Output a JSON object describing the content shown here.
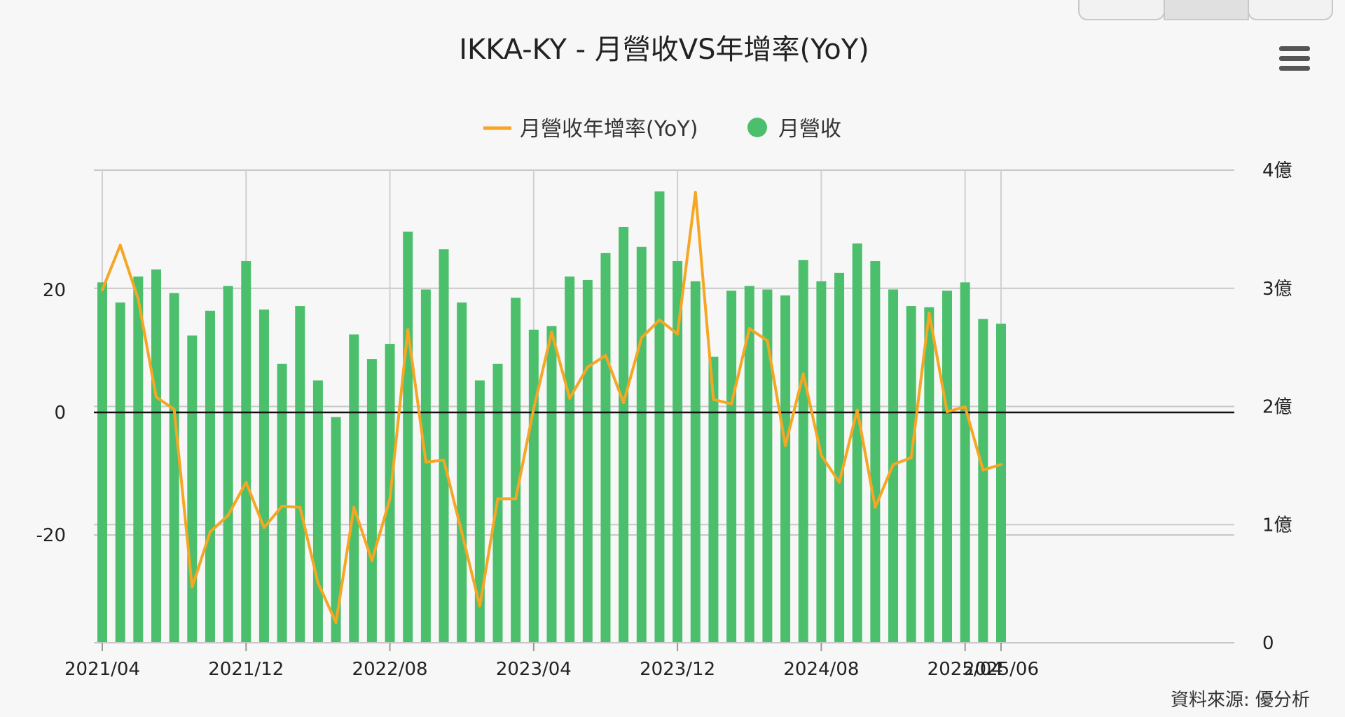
{
  "chart_data": {
    "type": "bar",
    "title": "IKKA-KY - 月營收VS年增率(YoY)",
    "source": "資料來源: 優分析",
    "legend": [
      {
        "name": "月營收年增率(YoY)",
        "marker": "line",
        "color": "#f5a623"
      },
      {
        "name": "月營收",
        "marker": "circle",
        "color": "#4cbf6c"
      }
    ],
    "legend_position": "top-center",
    "grid": true,
    "x": [
      "2021/04",
      "2021/05",
      "2021/06",
      "2021/07",
      "2021/08",
      "2021/09",
      "2021/10",
      "2021/11",
      "2021/12",
      "2022/01",
      "2022/02",
      "2022/03",
      "2022/04",
      "2022/05",
      "2022/06",
      "2022/07",
      "2022/08",
      "2022/09",
      "2022/10",
      "2022/11",
      "2022/12",
      "2023/01",
      "2023/02",
      "2023/03",
      "2023/04",
      "2023/05",
      "2023/06",
      "2023/07",
      "2023/08",
      "2023/09",
      "2023/10",
      "2023/11",
      "2023/12",
      "2024/01",
      "2024/02",
      "2024/03",
      "2024/04",
      "2024/05",
      "2024/06",
      "2024/07",
      "2024/08",
      "2024/09",
      "2024/10",
      "2024/11",
      "2024/12",
      "2025/01",
      "2025/02",
      "2025/03",
      "2025/04",
      "2025/05",
      "2025/06"
    ],
    "x_tick_labels": [
      "2021/04",
      "2021/12",
      "2022/08",
      "2023/04",
      "2023/12",
      "2024/08",
      "2025/04",
      "2025/06"
    ],
    "y_left": {
      "ticks": [
        "20",
        "0",
        "-20"
      ],
      "range": [
        -38,
        38
      ]
    },
    "y_right": {
      "ticks": [
        "0",
        "1億",
        "2億",
        "3億",
        "4億"
      ],
      "range": [
        0,
        4
      ]
    },
    "series": [
      {
        "name": "月營收",
        "type": "bar",
        "axis": "right",
        "color": "#4cbf6c",
        "unit": "億",
        "values": [
          3.05,
          2.88,
          3.1,
          3.16,
          2.96,
          2.6,
          2.81,
          3.02,
          3.23,
          2.82,
          2.36,
          2.85,
          2.22,
          1.91,
          2.61,
          2.4,
          2.53,
          3.48,
          2.99,
          3.33,
          2.88,
          2.22,
          2.36,
          2.92,
          2.65,
          2.68,
          3.1,
          3.07,
          3.3,
          3.52,
          3.35,
          3.82,
          3.23,
          3.06,
          2.42,
          2.98,
          3.02,
          2.99,
          2.94,
          3.24,
          3.06,
          3.13,
          3.38,
          3.23,
          2.99,
          2.85,
          2.84,
          2.98,
          3.05,
          2.74,
          2.7
        ]
      },
      {
        "name": "月營收年增率(YoY)",
        "type": "line",
        "axis": "left",
        "color": "#f5a623",
        "values": [
          20,
          27.3,
          18.5,
          2.5,
          0.5,
          -28.5,
          -19.5,
          -16.8,
          -11.4,
          -18.8,
          -15.3,
          -15.5,
          -27.8,
          -34.3,
          -15.5,
          -24.2,
          -14.1,
          13.5,
          -8.1,
          -7.8,
          -19.6,
          -31.6,
          -14.1,
          -14.1,
          0.6,
          13.1,
          2.3,
          7.4,
          9.3,
          1.6,
          12.2,
          15.1,
          12.8,
          35.9,
          2.1,
          1.4,
          13.7,
          11.7,
          -5.4,
          6.3,
          -7,
          -11.4,
          0.4,
          -15.5,
          -8.5,
          -7.4,
          16.2,
          0.1,
          0.9,
          -9.4,
          -8.5
        ]
      }
    ]
  },
  "toolbar": {
    "menu_icon": "hamburger-menu-icon"
  }
}
